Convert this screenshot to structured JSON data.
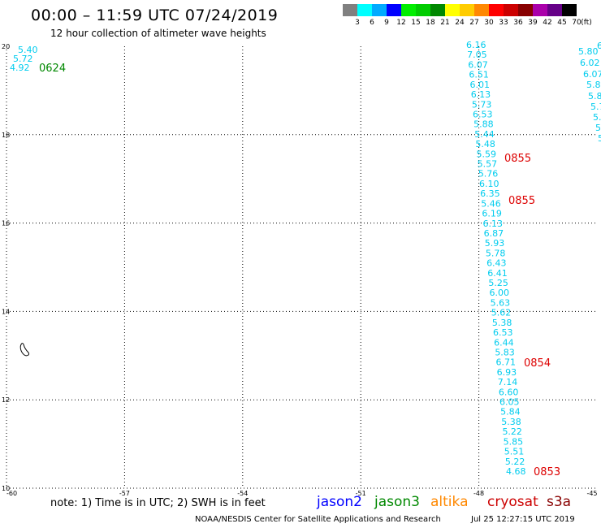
{
  "header": {
    "title": "00:00 – 11:59 UTC 07/24/2019",
    "subtitle": "12 hour collection of altimeter wave heights"
  },
  "color_scale": {
    "colors": [
      "#808080",
      "#00ffff",
      "#00aaff",
      "#0000ff",
      "#00ee00",
      "#00cc00",
      "#008800",
      "#ffff00",
      "#ffcc00",
      "#ff8800",
      "#ff0000",
      "#cc0000",
      "#880000",
      "#aa00aa",
      "#660088",
      "#000000"
    ],
    "labels": [
      "3",
      "6",
      "9",
      "12",
      "15",
      "18",
      "21",
      "24",
      "27",
      "30",
      "33",
      "36",
      "39",
      "42",
      "45",
      "70"
    ],
    "unit": "(ft)"
  },
  "axes": {
    "lat_ticks": [
      "20",
      "18",
      "16",
      "14",
      "12",
      "10"
    ],
    "lon_ticks": [
      "-60",
      "-57",
      "-54",
      "-51",
      "-48",
      "-45"
    ]
  },
  "left_track": {
    "values": [
      "5.40",
      "5.72",
      "4.92"
    ],
    "time": "0624",
    "time_color": "#008800"
  },
  "main_track": {
    "values": [
      "6.16",
      "7.05",
      "6.07",
      "6.51",
      "6.01",
      "6.13",
      "5.73",
      "6.53",
      "5.88",
      "5.44",
      "5.48",
      "5.59",
      "5.57",
      "5.76",
      "6.10",
      "6.35",
      "5.46",
      "6.19",
      "6.13",
      "6.87",
      "5.93",
      "5.78",
      "6.43",
      "6.41",
      "5.25",
      "6.00",
      "5.63",
      "5.62",
      "5.38",
      "6.53",
      "6.44",
      "5.83",
      "6.71",
      "6.93",
      "7.14",
      "6.60",
      "6.05",
      "5.84",
      "5.38",
      "5.22",
      "5.85",
      "5.51",
      "5.22",
      "4.68"
    ],
    "times": [
      "0855",
      "0855",
      "0854",
      "0853"
    ]
  },
  "right_track": {
    "values": [
      "6",
      "5.80",
      "6.02",
      "6.07",
      "5.8",
      "5.8",
      "5.7",
      "5.",
      "5",
      "5"
    ]
  },
  "note": "note: 1) Time is in UTC; 2) SWH is in feet",
  "satellites": [
    {
      "name": "jason2",
      "color": "#0000ff"
    },
    {
      "name": "jason3",
      "color": "#008800"
    },
    {
      "name": "altika",
      "color": "#ff8800"
    },
    {
      "name": "cryosat",
      "color": "#cc0000"
    },
    {
      "name": "s3a",
      "color": "#880000"
    }
  ],
  "footer": {
    "credit": "NOAA/NESDIS Center for Satellite Applications and Research",
    "timestamp": "Jul 25 12:27:15 UTC 2019"
  }
}
